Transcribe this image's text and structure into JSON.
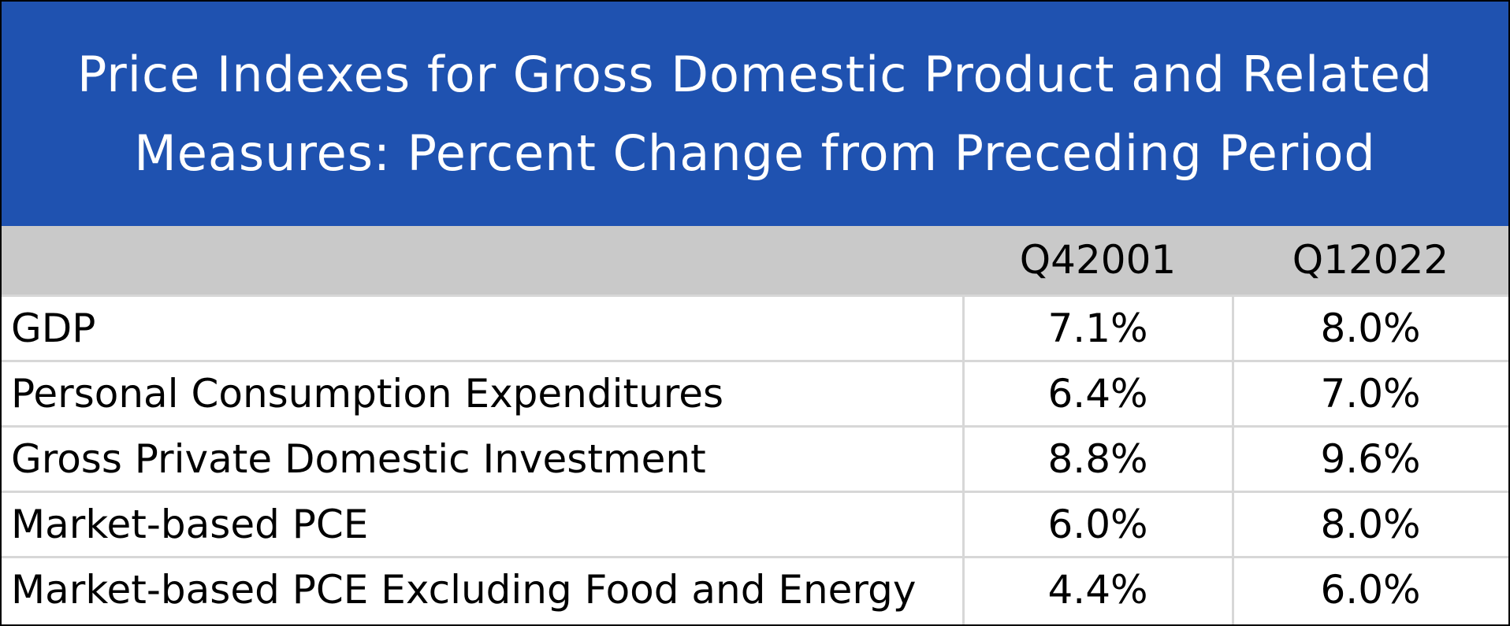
{
  "chart_data": {
    "type": "table",
    "title": "Price Indexes for Gross Domestic Product and Related Measures: Percent Change from Preceding Period",
    "title_lines": [
      "Price Indexes for Gross Domestic Product and Related",
      "Measures: Percent Change from Preceding Period"
    ],
    "columns": [
      "Q42001",
      "Q12022"
    ],
    "rows": [
      {
        "label": "GDP",
        "values": [
          "7.1%",
          "8.0%"
        ]
      },
      {
        "label": "Personal Consumption Expenditures",
        "values": [
          "6.4%",
          "7.0%"
        ]
      },
      {
        "label": "Gross Private Domestic Investment",
        "values": [
          "8.8%",
          "9.6%"
        ]
      },
      {
        "label": "Market-based PCE",
        "values": [
          "6.0%",
          "8.0%"
        ]
      },
      {
        "label": "Market-based PCE Excluding Food and Energy",
        "values": [
          "4.4%",
          "6.0%"
        ]
      }
    ]
  },
  "colors": {
    "title_background": "#1f52b0",
    "title_text": "#ffffff",
    "header_background": "#c9c9c9",
    "grid_lines": "#d7d7d7",
    "border": "#000000"
  }
}
